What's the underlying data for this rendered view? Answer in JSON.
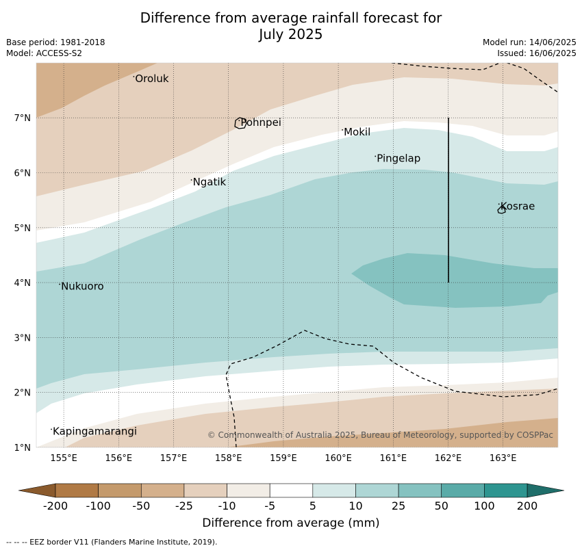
{
  "title_line1": "Difference from average rainfall forecast for",
  "title_line2": "July 2025",
  "base_period": "Base period: 1981-2018",
  "model": "Model: ACCESS-S2",
  "model_run": "Model run: 14/06/2025",
  "issued": "Issued: 16/06/2025",
  "x_ticks": [
    "155°E",
    "156°E",
    "157°E",
    "158°E",
    "159°E",
    "160°E",
    "161°E",
    "162°E",
    "163°E"
  ],
  "y_ticks": [
    "7°N",
    "6°N",
    "5°N",
    "4°N",
    "3°N",
    "2°N",
    "1°N"
  ],
  "places": [
    {
      "name": "Oroluk",
      "lon": 156.3,
      "lat": 7.65
    },
    {
      "name": "Pohnpei",
      "lon": 158.22,
      "lat": 6.85
    },
    {
      "name": "Mokil",
      "lon": 160.1,
      "lat": 6.68
    },
    {
      "name": "Pingelap",
      "lon": 160.7,
      "lat": 6.2
    },
    {
      "name": "Ngatik",
      "lon": 157.35,
      "lat": 5.77
    },
    {
      "name": "Kosrae",
      "lon": 162.95,
      "lat": 5.33
    },
    {
      "name": "Nukuoro",
      "lon": 154.95,
      "lat": 3.87
    },
    {
      "name": "Kapingamarangi",
      "lon": 154.8,
      "lat": 1.23
    }
  ],
  "copyright": "© Commonwealth of Australia 2025, Bureau of Meteorology, supported by COSPPac",
  "colorbar": {
    "title": "Difference from average (mm)",
    "labels": [
      "-200",
      "-100",
      "-50",
      "-25",
      "-10",
      "-5",
      "5",
      "10",
      "25",
      "50",
      "100",
      "200"
    ],
    "colors": [
      "#b07a45",
      "#c49a6c",
      "#d4b08c",
      "#e5d0bd",
      "#f2ede6",
      "#ffffff",
      "#d6e9e8",
      "#aed6d5",
      "#85c2c0",
      "#5aaba8",
      "#2e9590"
    ],
    "low_color": "#8a5a2c",
    "high_color": "#1f6e6a"
  },
  "footer": "-- -- -- EEZ border V11 (Flanders Marine Institute, 2019)."
}
